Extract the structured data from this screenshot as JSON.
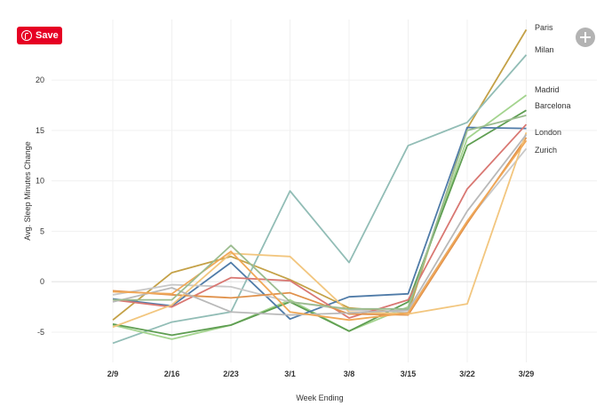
{
  "save_button": {
    "label": "Save",
    "color": "#e60023"
  },
  "expand_button": {
    "icon": "plus-circle-icon"
  },
  "chart_data": {
    "type": "line",
    "xlabel": "Week Ending",
    "ylabel": "Avg. Sleep Minutes Change",
    "categories": [
      "2/9",
      "2/16",
      "2/23",
      "3/1",
      "3/8",
      "3/15",
      "3/22",
      "3/29"
    ],
    "ylim": [
      -8,
      26
    ],
    "yticks": [
      -5,
      0,
      5,
      10,
      15,
      20
    ],
    "grid": true,
    "series": [
      {
        "name": "Paris",
        "color": "#c4a147",
        "values": [
          -3.8,
          0.9,
          2.5,
          0.2,
          -2.6,
          -3.1,
          15.2,
          25.0
        ]
      },
      {
        "name": "Milan",
        "color": "#92bdb6",
        "values": [
          -6.1,
          -4.0,
          -3.0,
          9.0,
          1.9,
          13.5,
          15.8,
          22.5
        ]
      },
      {
        "name": "Madrid",
        "color": "#a4d48f",
        "values": [
          -4.3,
          -5.7,
          -4.3,
          -1.8,
          -4.9,
          -2.5,
          14.2,
          18.5
        ]
      },
      {
        "name": "Barcelona",
        "color": "#5f9e52",
        "values": [
          -4.2,
          -5.3,
          -4.3,
          -2.0,
          -4.9,
          -2.0,
          13.5,
          17.0
        ]
      },
      {
        "name": "London",
        "color": "#4f7ba8",
        "values": [
          -1.7,
          -2.4,
          1.9,
          -3.7,
          -1.5,
          -1.2,
          15.3,
          15.2
        ]
      },
      {
        "name": "Zurich",
        "color": "#c8c8c8",
        "values": [
          -1.3,
          -0.3,
          -0.5,
          -2.0,
          -2.8,
          -3.0,
          6.0,
          13.2
        ]
      },
      {
        "name": "",
        "color": "#d97873",
        "values": [
          -1.8,
          -2.5,
          0.4,
          0.1,
          -3.6,
          -1.8,
          9.2,
          15.6
        ]
      },
      {
        "name": "",
        "color": "#e0914b",
        "values": [
          -0.9,
          -1.3,
          -1.6,
          -1.1,
          -3.2,
          -3.3,
          5.8,
          14.3
        ]
      },
      {
        "name": "",
        "color": "#f2c67f",
        "values": [
          -4.5,
          -2.3,
          2.8,
          2.5,
          -3.0,
          -3.2,
          -2.2,
          14.8
        ]
      },
      {
        "name": "",
        "color": "#b9b9b9",
        "values": [
          -2.0,
          -0.6,
          -3.0,
          -3.3,
          -3.1,
          -2.8,
          7.0,
          14.6
        ]
      },
      {
        "name": "",
        "color": "#f0a858",
        "values": [
          -1.0,
          -1.2,
          3.0,
          -3.0,
          -3.8,
          -3.1,
          6.0,
          14.0
        ]
      },
      {
        "name": "",
        "color": "#9bbc8f",
        "values": [
          -1.8,
          -1.8,
          3.6,
          -2.0,
          -2.7,
          -2.7,
          15.0,
          16.5
        ]
      }
    ]
  }
}
